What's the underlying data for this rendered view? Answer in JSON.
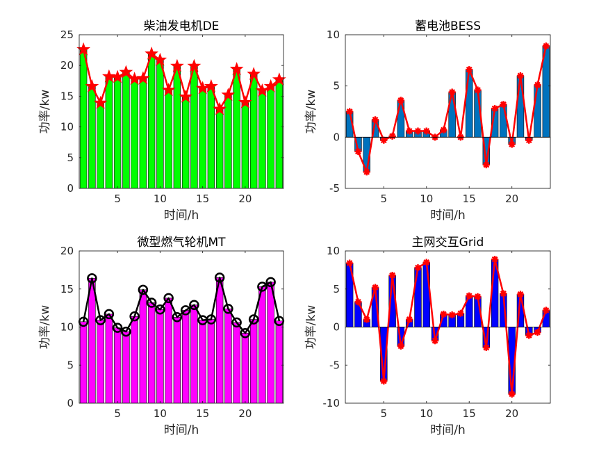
{
  "chart_data": [
    {
      "type": "bar",
      "title": "柴油发电机DE",
      "xlabel": "时间/h",
      "ylabel": "功率/kw",
      "xlim": [
        0.5,
        24.5
      ],
      "ylim": [
        0,
        25
      ],
      "xticks": [
        5,
        10,
        15,
        20
      ],
      "yticks": [
        0,
        5,
        10,
        15,
        20,
        25
      ],
      "bar_color": "#00ff00",
      "line_color": "#ff0000",
      "marker": "star",
      "x": [
        1,
        2,
        3,
        4,
        5,
        6,
        7,
        8,
        9,
        10,
        11,
        12,
        13,
        14,
        15,
        16,
        17,
        18,
        19,
        20,
        21,
        22,
        23,
        24
      ],
      "values": [
        22.6,
        16.6,
        13.9,
        18.2,
        18.1,
        18.9,
        17.8,
        17.9,
        21.9,
        20.9,
        16.0,
        19.9,
        14.9,
        19.9,
        16.3,
        16.6,
        12.9,
        15.2,
        19.4,
        14.0,
        18.6,
        15.9,
        16.6,
        17.7
      ]
    },
    {
      "type": "bar",
      "title": "蓄电池BESS",
      "xlabel": "时间/h",
      "ylabel": "功率/kw",
      "xlim": [
        0.5,
        24.5
      ],
      "ylim": [
        -5,
        10
      ],
      "xticks": [
        5,
        10,
        15,
        20
      ],
      "yticks": [
        -5,
        0,
        5,
        10
      ],
      "bar_color": "#0072bd",
      "line_color": "#ff0000",
      "marker": "asterisk",
      "x": [
        1,
        2,
        3,
        4,
        5,
        6,
        7,
        8,
        9,
        10,
        11,
        12,
        13,
        14,
        15,
        16,
        17,
        18,
        19,
        20,
        21,
        22,
        23,
        24
      ],
      "values": [
        2.5,
        -1.4,
        -3.4,
        1.7,
        -0.3,
        0.1,
        3.6,
        0.6,
        0.6,
        0.6,
        0.0,
        0.7,
        4.4,
        0.0,
        6.6,
        4.6,
        -2.7,
        2.8,
        3.2,
        -0.7,
        6.0,
        -0.3,
        5.1,
        8.9
      ]
    },
    {
      "type": "bar",
      "title": "微型燃气轮机MT",
      "xlabel": "时间/h",
      "ylabel": "功率/kw",
      "xlim": [
        0.5,
        24.5
      ],
      "ylim": [
        0,
        20
      ],
      "xticks": [
        5,
        10,
        15,
        20
      ],
      "yticks": [
        0,
        5,
        10,
        15,
        20
      ],
      "bar_color": "#ff00ff",
      "line_color": "#000000",
      "marker": "circle",
      "x": [
        1,
        2,
        3,
        4,
        5,
        6,
        7,
        8,
        9,
        10,
        11,
        12,
        13,
        14,
        15,
        16,
        17,
        18,
        19,
        20,
        21,
        22,
        23,
        24
      ],
      "values": [
        10.7,
        16.4,
        10.9,
        11.7,
        9.9,
        9.4,
        11.4,
        14.9,
        13.2,
        12.3,
        13.8,
        11.3,
        12.2,
        12.9,
        10.9,
        11.0,
        16.5,
        12.4,
        10.6,
        9.2,
        11.0,
        15.3,
        15.9,
        10.8
      ]
    },
    {
      "type": "bar",
      "title": "主网交互Grid",
      "xlabel": "时间/h",
      "ylabel": "功率/kw",
      "xlim": [
        0.5,
        24.5
      ],
      "ylim": [
        -10,
        10
      ],
      "xticks": [
        5,
        10,
        15,
        20
      ],
      "yticks": [
        -10,
        -5,
        0,
        5,
        10
      ],
      "bar_color": "#0000ff",
      "line_color": "#ff0000",
      "marker": "asterisk",
      "x": [
        1,
        2,
        3,
        4,
        5,
        6,
        7,
        8,
        9,
        10,
        11,
        12,
        13,
        14,
        15,
        16,
        17,
        18,
        19,
        20,
        21,
        22,
        23,
        24
      ],
      "values": [
        8.4,
        3.3,
        1.0,
        5.2,
        -7.1,
        6.8,
        -2.5,
        1.0,
        7.8,
        8.5,
        -1.8,
        1.7,
        1.6,
        1.8,
        4.1,
        4.0,
        -2.7,
        8.9,
        4.4,
        -8.8,
        4.3,
        -1.1,
        -0.7,
        2.2
      ]
    }
  ]
}
